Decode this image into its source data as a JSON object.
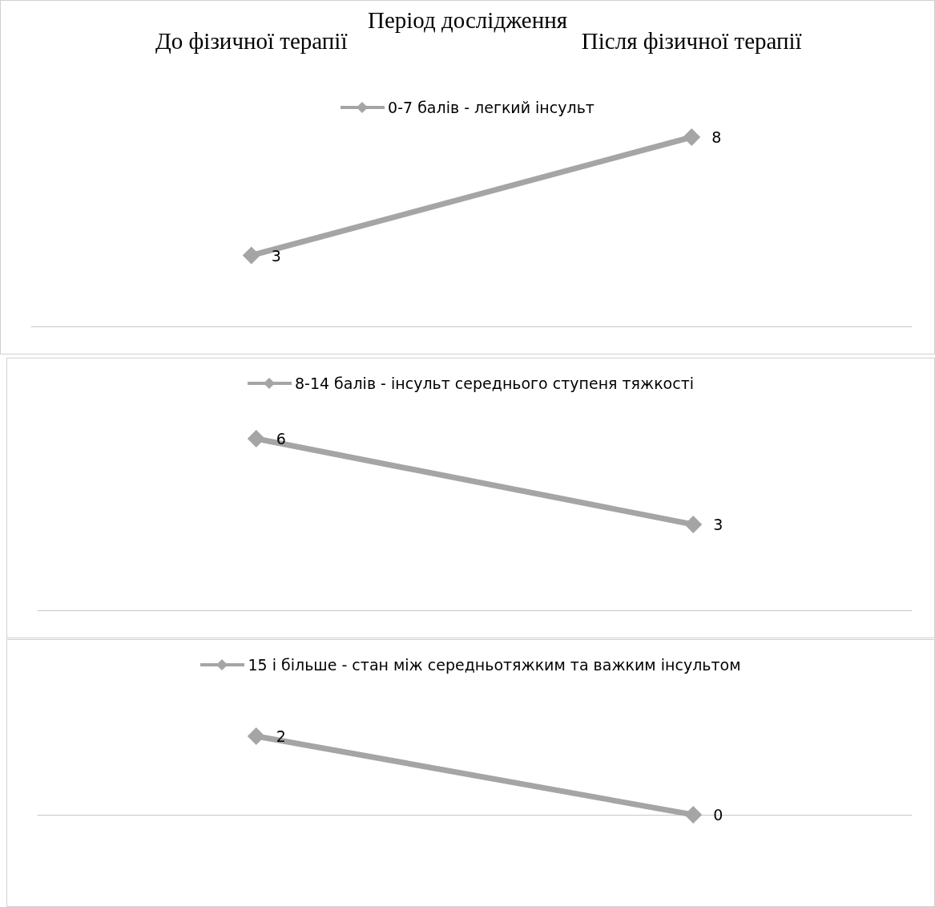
{
  "chart_data": [
    {
      "type": "line",
      "title": "Період дослідження",
      "categories": [
        "До фізичної терапії",
        "Після фізичної терапії"
      ],
      "series": [
        {
          "name": "0-7 балів - легкий інсульт",
          "color": "#a5a5a5",
          "values": [
            3,
            8
          ]
        }
      ],
      "data_labels": true,
      "marker": "diamond",
      "legend": "top",
      "tick_labels": "x"
    },
    {
      "type": "line",
      "categories": [
        null,
        null
      ],
      "series": [
        {
          "name": "8-14 балів - інсульт середнього ступеня тяжкості",
          "color": "#a5a5a5",
          "values": [
            6,
            3
          ]
        }
      ],
      "data_labels": true,
      "marker": "diamond",
      "legend": "top",
      "tick_labels": false
    },
    {
      "type": "line",
      "categories": [
        null,
        null
      ],
      "series": [
        {
          "name": "15 і більше - стан між середньотяжким та важким інсультом",
          "color": "#a5a5a5",
          "values": [
            2,
            0
          ]
        }
      ],
      "data_labels": true,
      "marker": "diamond",
      "legend": "top",
      "tick_labels": false
    }
  ]
}
